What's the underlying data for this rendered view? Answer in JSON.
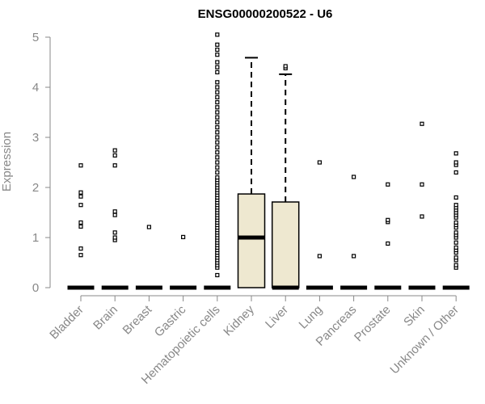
{
  "chart_data": {
    "type": "box",
    "title": "ENSG00000200522 - U6",
    "xlabel": "",
    "ylabel": "Expression",
    "ylim": [
      0,
      5.1
    ],
    "yticks": [
      0,
      1,
      2,
      3,
      4,
      5
    ],
    "grid": false,
    "colors": {
      "box_fill": "#EEE8D0",
      "axis": "#888888",
      "ink": "#000000"
    },
    "categories": [
      "Bladder",
      "Brain",
      "Breast",
      "Gastric",
      "Hematopoietic cells",
      "Kidney",
      "Liver",
      "Lung",
      "Pancreas",
      "Prostate",
      "Skin",
      "Unknown / Other"
    ],
    "boxes": [
      {
        "category": "Bladder",
        "q1": 0,
        "median": 0,
        "q3": 0,
        "whisker_low": 0,
        "whisker_high": 0,
        "outliers": [
          0.65,
          0.78,
          1.22,
          1.3,
          1.65,
          1.82,
          1.9,
          2.44
        ]
      },
      {
        "category": "Brain",
        "q1": 0,
        "median": 0,
        "q3": 0,
        "whisker_low": 0,
        "whisker_high": 0,
        "outliers": [
          0.95,
          1.0,
          1.1,
          1.45,
          1.52,
          2.44,
          2.64,
          2.74
        ]
      },
      {
        "category": "Breast",
        "q1": 0,
        "median": 0,
        "q3": 0,
        "whisker_low": 0,
        "whisker_high": 0,
        "outliers": [
          1.21
        ]
      },
      {
        "category": "Gastric",
        "q1": 0,
        "median": 0,
        "q3": 0,
        "whisker_low": 0,
        "whisker_high": 0,
        "outliers": [
          1.01
        ]
      },
      {
        "category": "Hematopoietic cells",
        "q1": 0,
        "median": 0,
        "q3": 0,
        "whisker_low": 0,
        "whisker_high": 0,
        "outliers": [
          0.25,
          0.4,
          0.45,
          0.5,
          0.55,
          0.6,
          0.65,
          0.7,
          0.75,
          0.8,
          0.85,
          0.9,
          0.95,
          1.0,
          1.05,
          1.1,
          1.15,
          1.2,
          1.25,
          1.3,
          1.35,
          1.4,
          1.45,
          1.5,
          1.55,
          1.6,
          1.65,
          1.7,
          1.75,
          1.8,
          1.85,
          1.9,
          1.95,
          2.0,
          2.05,
          2.1,
          2.15,
          2.2,
          2.3,
          2.4,
          2.5,
          2.6,
          2.7,
          2.8,
          2.9,
          3.0,
          3.1,
          3.2,
          3.3,
          3.4,
          3.5,
          3.6,
          3.7,
          3.8,
          3.9,
          4.0,
          4.1,
          4.3,
          4.4,
          4.5,
          4.65,
          4.75,
          4.85,
          5.05
        ]
      },
      {
        "category": "Kidney",
        "q1": 0,
        "median": 1.0,
        "q3": 1.87,
        "whisker_low": 0,
        "whisker_high": 4.59,
        "outliers": []
      },
      {
        "category": "Liver",
        "q1": 0,
        "median": 0,
        "q3": 1.71,
        "whisker_low": 0,
        "whisker_high": 4.26,
        "outliers": [
          4.38,
          4.42
        ]
      },
      {
        "category": "Lung",
        "q1": 0,
        "median": 0,
        "q3": 0,
        "whisker_low": 0,
        "whisker_high": 0,
        "outliers": [
          0.63,
          2.5
        ]
      },
      {
        "category": "Pancreas",
        "q1": 0,
        "median": 0,
        "q3": 0,
        "whisker_low": 0,
        "whisker_high": 0,
        "outliers": [
          0.63,
          2.21
        ]
      },
      {
        "category": "Prostate",
        "q1": 0,
        "median": 0,
        "q3": 0,
        "whisker_low": 0,
        "whisker_high": 0,
        "outliers": [
          0.88,
          1.31,
          1.35,
          2.06
        ]
      },
      {
        "category": "Skin",
        "q1": 0,
        "median": 0,
        "q3": 0,
        "whisker_low": 0,
        "whisker_high": 0,
        "outliers": [
          1.42,
          2.06,
          3.27
        ]
      },
      {
        "category": "Unknown / Other",
        "q1": 0,
        "median": 0,
        "q3": 0,
        "whisker_low": 0,
        "whisker_high": 0,
        "outliers": [
          0.4,
          0.45,
          0.55,
          0.6,
          0.7,
          0.75,
          0.8,
          0.9,
          1.0,
          1.05,
          1.1,
          1.2,
          1.25,
          1.3,
          1.4,
          1.45,
          1.5,
          1.55,
          1.6,
          1.65,
          1.8,
          2.3,
          2.45,
          2.5,
          2.68
        ]
      }
    ]
  }
}
